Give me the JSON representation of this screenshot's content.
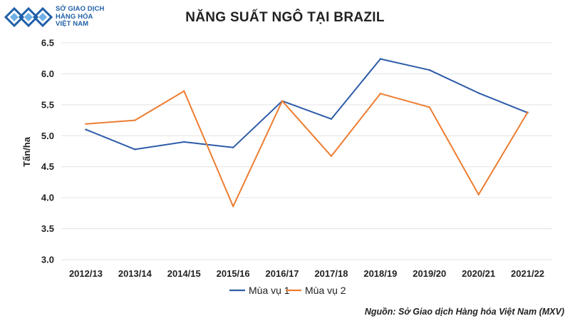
{
  "logo": {
    "line1": "SỞ GIAO DỊCH",
    "line2": "HÀNG HÓA",
    "line3": "VIỆT NAM",
    "color": "#1f5fa8"
  },
  "source_note": "Nguồn: Sở Giao dịch Hàng hóa Việt Nam (MXV)",
  "chart_data": {
    "type": "line",
    "title": "NĂNG SUẤT NGÔ TẠI BRAZIL",
    "xlabel": "",
    "ylabel": "Tấn/ha",
    "ylim": [
      3.0,
      6.5
    ],
    "yticks": [
      "3.0",
      "3.5",
      "4.0",
      "4.5",
      "5.0",
      "5.5",
      "6.0",
      "6.5"
    ],
    "grid": true,
    "legend": "bottom",
    "categories": [
      "2012/13",
      "2013/14",
      "2014/15",
      "2015/16",
      "2016/17",
      "2017/18",
      "2018/19",
      "2019/20",
      "2020/21",
      "2021/22"
    ],
    "series": [
      {
        "name": "Mùa vụ 1",
        "color": "#2e5ca8",
        "values": [
          5.1,
          4.78,
          4.9,
          4.81,
          5.56,
          5.27,
          6.24,
          6.06,
          5.69,
          5.37
        ]
      },
      {
        "name": "Mùa vụ 2",
        "color": "#ed7d31",
        "values": [
          5.19,
          5.25,
          5.72,
          3.86,
          5.56,
          4.67,
          5.68,
          5.46,
          4.05,
          5.38
        ]
      }
    ]
  }
}
